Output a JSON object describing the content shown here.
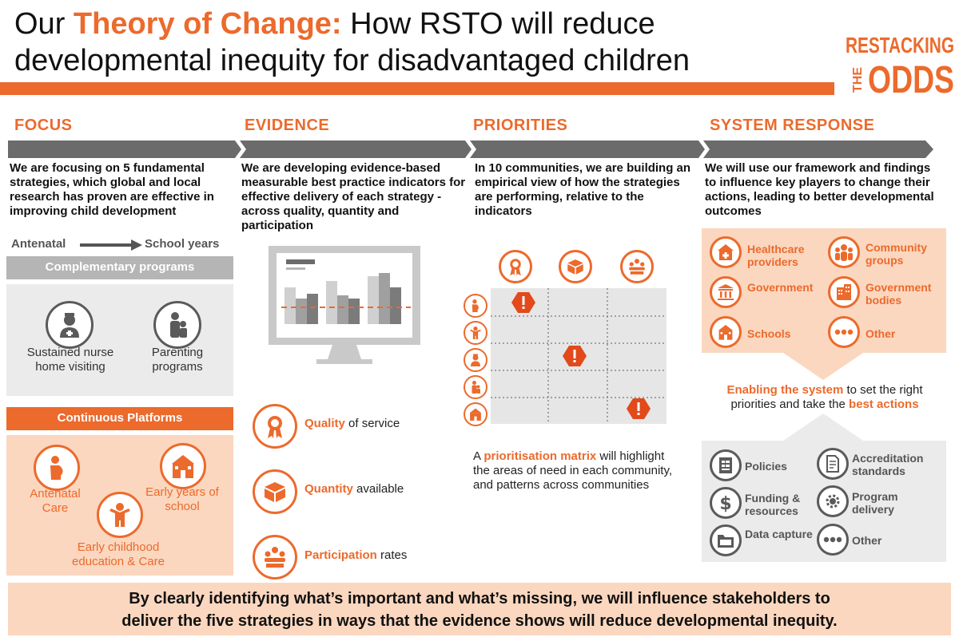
{
  "title": {
    "line1_prefix": "Our ",
    "line1_accent": "Theory of Change:",
    "line1_suffix": " How RSTO will reduce",
    "line2": "developmental inequity for disadvantaged children"
  },
  "logo": {
    "line1": "RESTACKING",
    "the": "THE",
    "odds": "ODDS"
  },
  "colors": {
    "accent": "#ec6a2c",
    "grey": "#6b6b6b",
    "peach": "#fbd7bf"
  },
  "focus": {
    "heading": "FOCUS",
    "text": "We are focusing on 5 fundamental strategies, which global and local research has proven are effective in improving child development",
    "arrow_from": "Antenatal",
    "arrow_to": "School years",
    "complementary_label": "Complementary programs",
    "complementary": [
      {
        "label": "Sustained nurse home visiting",
        "icon": "nurse-icon"
      },
      {
        "label": "Parenting programs",
        "icon": "parent-child-icon"
      }
    ],
    "continuous_label": "Continuous Platforms",
    "continuous": [
      {
        "label": "Antenatal Care",
        "icon": "pregnant-icon"
      },
      {
        "label": "Early years of school",
        "icon": "school-icon"
      },
      {
        "label": "Early childhood education & Care",
        "icon": "child-icon"
      }
    ]
  },
  "evidence": {
    "heading": "EVIDENCE",
    "text": "We are developing evidence-based measurable best practice indicators for effective delivery of each strategy - across quality, quantity and participation",
    "items": [
      {
        "bold": "Quality",
        "rest": " of service",
        "icon": "award-icon"
      },
      {
        "bold": "Quantity",
        "rest": " available",
        "icon": "box-icon"
      },
      {
        "bold": "Participation",
        "rest": " rates",
        "icon": "group-icon"
      }
    ]
  },
  "priorities": {
    "heading": "PRIORITIES",
    "text": "In 10 communities, we are building an empirical view of how the strategies are performing, relative to the indicators",
    "matrix_note_prefix": "A ",
    "matrix_note_bold": "prioritisation matrix",
    "matrix_note_rest": " will highlight the areas of need in each community, and patterns across communities"
  },
  "system_response": {
    "heading": "SYSTEM RESPONSE",
    "text": "We will use our framework and findings to influence key players to change their actions, leading to better developmental outcomes",
    "players": [
      {
        "label": "Healthcare providers",
        "icon": "hospital-icon"
      },
      {
        "label": "Community groups",
        "icon": "community-icon"
      },
      {
        "label": "Government",
        "icon": "government-icon"
      },
      {
        "label": "Government bodies",
        "icon": "building-icon"
      },
      {
        "label": "Schools",
        "icon": "school-icon"
      },
      {
        "label": "Other",
        "icon": "ellipsis-icon"
      }
    ],
    "enabling_bold1": "Enabling the system",
    "enabling_mid": " to set the right priorities and take the ",
    "enabling_bold2": "best actions",
    "levers": [
      {
        "label": "Policies",
        "icon": "policy-icon"
      },
      {
        "label": "Accreditation standards",
        "icon": "certificate-icon"
      },
      {
        "label": "Funding & resources",
        "icon": "dollar-icon"
      },
      {
        "label": "Program delivery",
        "icon": "cog-icon"
      },
      {
        "label": "Data capture",
        "icon": "folder-icon"
      },
      {
        "label": "Other",
        "icon": "ellipsis-icon"
      }
    ]
  },
  "footer": {
    "line1": "By clearly identifying what’s important and what’s missing, we will influence stakeholders to",
    "line2": "deliver the five strategies in ways that the evidence shows will reduce developmental inequity."
  }
}
